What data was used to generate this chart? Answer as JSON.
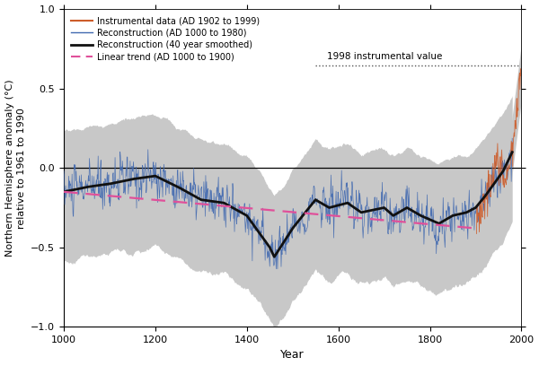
{
  "xlim": [
    1000,
    2000
  ],
  "ylim": [
    -1.0,
    1.0
  ],
  "xlabel": "Year",
  "ylabel": "Northern Hemisphere anomaly (°C)\nrelative to 1961 to 1990",
  "legend_entries": [
    "Instrumental data (AD 1902 to 1999)",
    "Reconstruction (AD 1000 to 1980)",
    "Reconstruction (40 year smoothed)",
    "Linear trend (AD 1000 to 1900)"
  ],
  "annotation_text": "1998 instrumental value",
  "annotation_value": 0.644,
  "colors": {
    "instrumental": "#cd5c2a",
    "reconstruction": "#4169b0",
    "smoothed": "#111111",
    "linear_trend": "#e0509a",
    "uncertainty": "#c8c8c8",
    "zero_line": "#000000",
    "dotted_line": "#555555"
  },
  "background_color": "#ffffff"
}
